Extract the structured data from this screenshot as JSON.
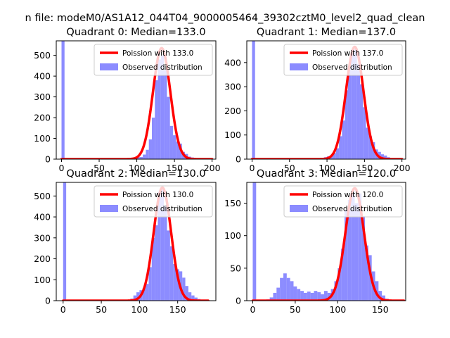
{
  "figure_title": "n file: modeM0/AS1A12_044T04_9000005464_39302cztM0_level2_quad_clean",
  "colors": {
    "fit": "#ff0000",
    "hist": "#7f7fff",
    "hist_alpha": 0.9
  },
  "chart_data": [
    {
      "type": "bar",
      "title": "Quadrant 0: Median=133.0",
      "xlim": [
        -7,
        205
      ],
      "ylim": [
        0,
        570
      ],
      "xticks": [
        0,
        50,
        100,
        150,
        200
      ],
      "yticks": [
        0,
        100,
        200,
        300,
        400,
        500
      ],
      "legend": {
        "placement": "top-right",
        "fit_label": "Poission with 133.0",
        "hist_label": "Observed distribution"
      },
      "hist_bin_width": 4,
      "hist_bins": [
        [
          0,
          570
        ],
        [
          84,
          3
        ],
        [
          88,
          6
        ],
        [
          92,
          5
        ],
        [
          96,
          8
        ],
        [
          100,
          10
        ],
        [
          104,
          10
        ],
        [
          108,
          22
        ],
        [
          112,
          45
        ],
        [
          116,
          95
        ],
        [
          120,
          200
        ],
        [
          124,
          380
        ],
        [
          128,
          480
        ],
        [
          132,
          500
        ],
        [
          136,
          430
        ],
        [
          140,
          300
        ],
        [
          144,
          160
        ],
        [
          148,
          115
        ],
        [
          152,
          85
        ],
        [
          156,
          75
        ],
        [
          160,
          35
        ],
        [
          164,
          25
        ],
        [
          168,
          12
        ],
        [
          172,
          8
        ],
        [
          176,
          4
        ],
        [
          180,
          3
        ],
        [
          184,
          2
        ],
        [
          188,
          1
        ]
      ],
      "fit": {
        "mu": 133.0,
        "peak": 535,
        "x_max": 200
      }
    },
    {
      "type": "bar",
      "title": "Quadrant 1: Median=137.0",
      "xlim": [
        -7,
        205
      ],
      "ylim": [
        0,
        490
      ],
      "xticks": [
        0,
        50,
        100,
        150,
        200
      ],
      "yticks": [
        0,
        100,
        200,
        300,
        400
      ],
      "legend": {
        "placement": "top-right",
        "fit_label": "Poission with 137.0",
        "hist_label": "Observed distribution"
      },
      "hist_bin_width": 4,
      "hist_bins": [
        [
          0,
          490
        ],
        [
          88,
          3
        ],
        [
          92,
          5
        ],
        [
          96,
          8
        ],
        [
          100,
          12
        ],
        [
          104,
          15
        ],
        [
          108,
          25
        ],
        [
          112,
          45
        ],
        [
          116,
          95
        ],
        [
          120,
          160
        ],
        [
          124,
          285
        ],
        [
          128,
          380
        ],
        [
          132,
          440
        ],
        [
          136,
          455
        ],
        [
          140,
          395
        ],
        [
          144,
          310
        ],
        [
          148,
          215
        ],
        [
          152,
          130
        ],
        [
          156,
          95
        ],
        [
          160,
          70
        ],
        [
          164,
          40
        ],
        [
          168,
          30
        ],
        [
          172,
          20
        ],
        [
          176,
          15
        ],
        [
          180,
          8
        ],
        [
          184,
          4
        ],
        [
          188,
          3
        ],
        [
          192,
          2
        ]
      ],
      "fit": {
        "mu": 137.0,
        "peak": 465,
        "x_max": 200
      }
    },
    {
      "type": "bar",
      "title": "Quadrant 2: Median=130.0",
      "xlim": [
        -9,
        200
      ],
      "ylim": [
        0,
        565
      ],
      "xticks": [
        0,
        50,
        100,
        150
      ],
      "yticks": [
        0,
        100,
        200,
        300,
        400,
        500
      ],
      "legend": {
        "placement": "top-right",
        "fit_label": "Poission with 130.0",
        "hist_label": "Observed distribution"
      },
      "hist_bin_width": 4,
      "hist_bins": [
        [
          0,
          565
        ],
        [
          84,
          5
        ],
        [
          88,
          10
        ],
        [
          92,
          25
        ],
        [
          96,
          40
        ],
        [
          100,
          50
        ],
        [
          104,
          60
        ],
        [
          108,
          80
        ],
        [
          112,
          160
        ],
        [
          116,
          300
        ],
        [
          120,
          360
        ],
        [
          124,
          520
        ],
        [
          128,
          530
        ],
        [
          132,
          450
        ],
        [
          136,
          335
        ],
        [
          140,
          260
        ],
        [
          144,
          175
        ],
        [
          148,
          150
        ],
        [
          152,
          140
        ],
        [
          156,
          110
        ],
        [
          160,
          70
        ],
        [
          164,
          40
        ],
        [
          168,
          25
        ],
        [
          172,
          15
        ],
        [
          176,
          8
        ],
        [
          180,
          4
        ],
        [
          184,
          3
        ]
      ],
      "fit": {
        "mu": 130.0,
        "peak": 540,
        "x_max": 190
      }
    },
    {
      "type": "bar",
      "title": "Quadrant 3: Median=120.0",
      "xlim": [
        -7,
        180
      ],
      "ylim": [
        0,
        182
      ],
      "xticks": [
        0,
        50,
        100,
        150
      ],
      "yticks": [
        0,
        50,
        100,
        150
      ],
      "legend": {
        "placement": "top-right",
        "fit_label": "Poission with 120.0",
        "hist_label": "Observed distribution"
      },
      "hist_bin_width": 4,
      "hist_bins": [
        [
          0,
          182
        ],
        [
          16,
          2
        ],
        [
          20,
          5
        ],
        [
          24,
          12
        ],
        [
          28,
          20
        ],
        [
          32,
          35
        ],
        [
          36,
          42
        ],
        [
          40,
          35
        ],
        [
          44,
          30
        ],
        [
          48,
          22
        ],
        [
          52,
          18
        ],
        [
          56,
          15
        ],
        [
          60,
          12
        ],
        [
          64,
          14
        ],
        [
          68,
          12
        ],
        [
          72,
          15
        ],
        [
          76,
          13
        ],
        [
          80,
          10
        ],
        [
          84,
          15
        ],
        [
          88,
          12
        ],
        [
          92,
          18
        ],
        [
          96,
          30
        ],
        [
          100,
          50
        ],
        [
          104,
          80
        ],
        [
          108,
          140
        ],
        [
          112,
          155
        ],
        [
          116,
          170
        ],
        [
          120,
          150
        ],
        [
          124,
          165
        ],
        [
          128,
          130
        ],
        [
          132,
          85
        ],
        [
          136,
          70
        ],
        [
          140,
          45
        ],
        [
          144,
          30
        ],
        [
          148,
          15
        ],
        [
          152,
          8
        ],
        [
          156,
          3
        ],
        [
          160,
          1
        ]
      ],
      "fit": {
        "mu": 120.0,
        "peak": 173,
        "x_max": 178
      }
    }
  ]
}
